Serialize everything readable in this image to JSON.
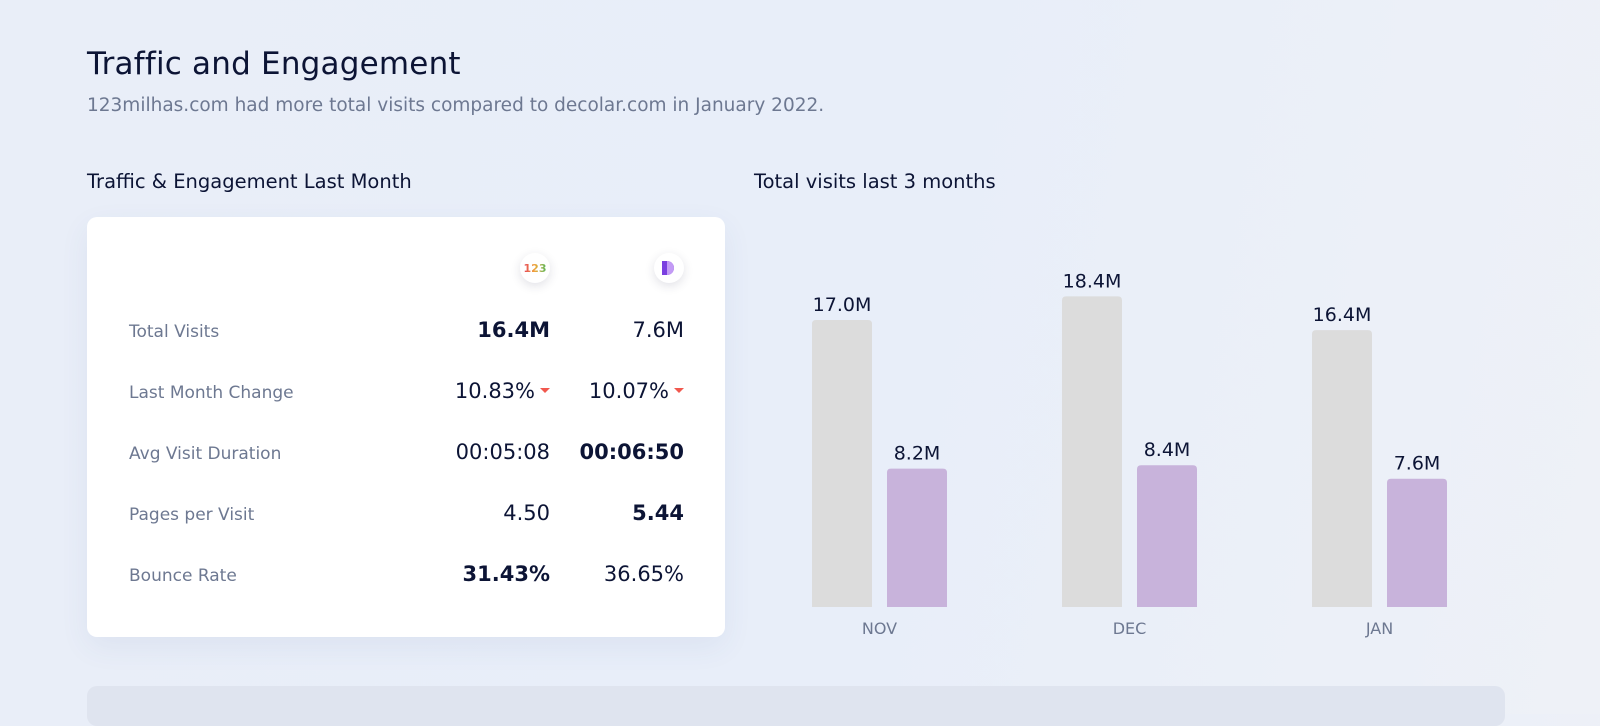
{
  "header": {
    "title": "Traffic and Engagement",
    "subtitle": "123milhas.com had more total visits compared to decolar.com in January 2022."
  },
  "engagement": {
    "section_title": "Traffic & Engagement Last Month",
    "sites": [
      {
        "icon": "123milhas-logo-icon",
        "logo_text": "123"
      },
      {
        "icon": "decolar-logo-icon",
        "logo_text": ""
      }
    ],
    "rows": [
      {
        "label": "Total Visits",
        "values": [
          "16.4M",
          "7.6M"
        ],
        "bold": [
          true,
          false
        ],
        "trend": [
          null,
          null
        ]
      },
      {
        "label": "Last Month Change",
        "values": [
          "10.83%",
          "10.07%"
        ],
        "bold": [
          false,
          false
        ],
        "trend": [
          "down",
          "down"
        ]
      },
      {
        "label": "Avg Visit Duration",
        "values": [
          "00:05:08",
          "00:06:50"
        ],
        "bold": [
          false,
          true
        ],
        "trend": [
          null,
          null
        ]
      },
      {
        "label": "Pages per Visit",
        "values": [
          "4.50",
          "5.44"
        ],
        "bold": [
          false,
          true
        ],
        "trend": [
          null,
          null
        ]
      },
      {
        "label": "Bounce Rate",
        "values": [
          "31.43%",
          "36.65%"
        ],
        "bold": [
          true,
          false
        ],
        "trend": [
          null,
          null
        ]
      }
    ],
    "trend_down_color": "#f1584e"
  },
  "visits_chart": {
    "section_title": "Total visits last 3 months"
  },
  "chart_data": {
    "type": "bar",
    "title": "Total visits last 3 months",
    "categories": [
      "NOV",
      "DEC",
      "JAN"
    ],
    "series": [
      {
        "values": [
          17.0,
          18.4,
          16.4
        ],
        "labels": [
          "17.0M",
          "18.4M",
          "16.4M"
        ],
        "color": "#dcdcdc"
      },
      {
        "values": [
          8.2,
          8.4,
          7.6
        ],
        "labels": [
          "8.2M",
          "8.4M",
          "7.6M"
        ],
        "color": "#c8b3db"
      }
    ],
    "unit": "M",
    "xlabel": "",
    "ylabel": "",
    "grid": false,
    "legend": "none"
  }
}
